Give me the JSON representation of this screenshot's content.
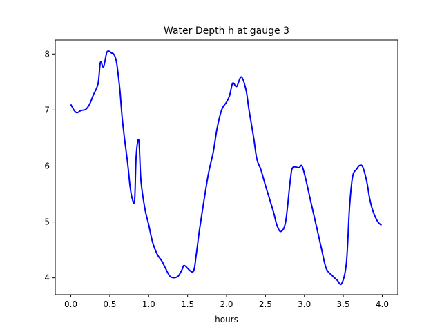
{
  "chart_data": {
    "type": "line",
    "title": "Water Depth h at gauge 3",
    "xlabel": "hours",
    "ylabel": "",
    "xlim": [
      -0.2,
      4.2
    ],
    "ylim": [
      3.7,
      8.25
    ],
    "xticks": [
      0.0,
      0.5,
      1.0,
      1.5,
      2.0,
      2.5,
      3.0,
      3.5,
      4.0
    ],
    "xtick_labels": [
      "0.0",
      "0.5",
      "1.0",
      "1.5",
      "2.0",
      "2.5",
      "3.0",
      "3.5",
      "4.0"
    ],
    "yticks": [
      4,
      5,
      6,
      7,
      8
    ],
    "ytick_labels": [
      "4",
      "5",
      "6",
      "7",
      "8"
    ],
    "grid": false,
    "series": [
      {
        "name": "h",
        "color": "#0000ff",
        "x": [
          0.0,
          0.044,
          0.08,
          0.13,
          0.19,
          0.24,
          0.29,
          0.35,
          0.38,
          0.42,
          0.46,
          0.49,
          0.52,
          0.55,
          0.58,
          0.6,
          0.63,
          0.66,
          0.69,
          0.73,
          0.76,
          0.79,
          0.82,
          0.84,
          0.873,
          0.9,
          0.95,
          1.0,
          1.05,
          1.11,
          1.17,
          1.21,
          1.28,
          1.37,
          1.43,
          1.46,
          1.57,
          1.61,
          1.65,
          1.71,
          1.77,
          1.83,
          1.88,
          1.94,
          2.0,
          2.04,
          2.08,
          2.13,
          2.19,
          2.25,
          2.29,
          2.35,
          2.39,
          2.44,
          2.5,
          2.56,
          2.61,
          2.65,
          2.7,
          2.76,
          2.82,
          2.85,
          2.93,
          2.97,
          3.02,
          3.08,
          3.16,
          3.22,
          3.28,
          3.35,
          3.42,
          3.48,
          3.54,
          3.58,
          3.62,
          3.67,
          3.71,
          3.75,
          3.8,
          3.84,
          3.88,
          3.94,
          3.99
        ],
        "y": [
          7.1,
          6.99,
          6.95,
          6.99,
          7.01,
          7.1,
          7.27,
          7.47,
          7.85,
          7.77,
          8.02,
          8.05,
          8.02,
          8.0,
          7.9,
          7.73,
          7.36,
          6.86,
          6.49,
          6.05,
          5.65,
          5.41,
          5.4,
          6.18,
          6.46,
          5.75,
          5.25,
          4.95,
          4.64,
          4.42,
          4.3,
          4.19,
          4.02,
          4.02,
          4.15,
          4.22,
          4.11,
          4.4,
          4.83,
          5.38,
          5.88,
          6.25,
          6.68,
          7.01,
          7.14,
          7.26,
          7.48,
          7.42,
          7.59,
          7.36,
          6.99,
          6.49,
          6.12,
          5.94,
          5.65,
          5.38,
          5.14,
          4.93,
          4.83,
          5.01,
          5.75,
          5.97,
          5.97,
          6.0,
          5.75,
          5.38,
          4.89,
          4.52,
          4.17,
          4.05,
          3.96,
          3.9,
          4.27,
          5.26,
          5.81,
          5.94,
          6.01,
          5.98,
          5.73,
          5.41,
          5.2,
          5.01,
          4.94
        ]
      }
    ]
  }
}
